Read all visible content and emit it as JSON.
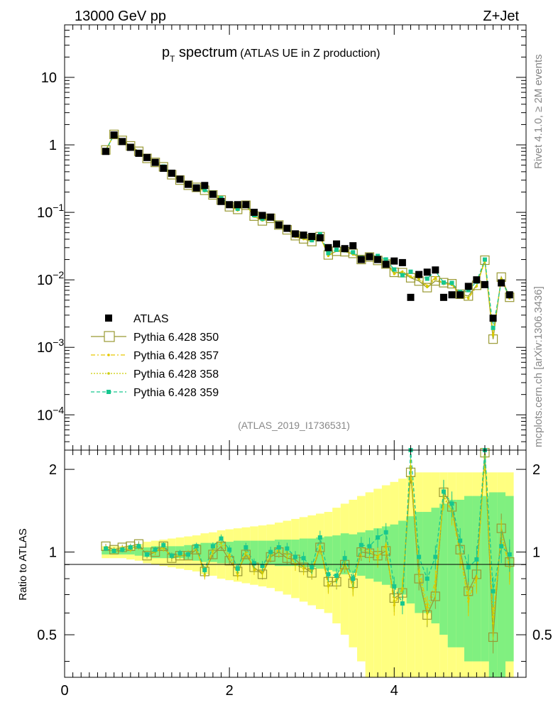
{
  "header": {
    "energy_label": "13000 GeV pp",
    "process_label": "Z+Jet",
    "title_main": "p",
    "title_sub": "T",
    "title_word": " spectrum",
    "title_paren": "(ATLAS UE in Z production)",
    "side_top": "Rivet 4.1.0, ≥ 2M events",
    "side_bottom": "mcplots.cern.ch [arXiv:1306.3436]",
    "analysis_id": "(ATLAS_2019_I1736531)"
  },
  "colors": {
    "data": "#000000",
    "p350": "#999933",
    "p357": "#e6c700",
    "p358": "#cccc00",
    "p359": "#17c78f",
    "band_inner": "#80f080",
    "band_outer": "#ffff80"
  },
  "chart_data": {
    "type": "scatter",
    "xlabel": "",
    "ylabel_ratio": "Ratio to ATLAS",
    "xlim": [
      0,
      5.6
    ],
    "ylim_main": [
      3e-05,
      60
    ],
    "ylim_ratio": [
      0.35,
      2.35
    ],
    "x_ticks": [
      "0",
      "2",
      "4"
    ],
    "y_ticks_main": [
      {
        "base": "10",
        "exp": "",
        "value": 10
      },
      {
        "base": "1",
        "exp": "",
        "value": 1
      },
      {
        "base": "10",
        "exp": "−1",
        "value": 0.1
      },
      {
        "base": "10",
        "exp": "−2",
        "value": 0.01
      },
      {
        "base": "10",
        "exp": "−3",
        "value": 0.001
      },
      {
        "base": "10",
        "exp": "−4",
        "value": 0.0001
      }
    ],
    "y_ticks_ratio": [
      {
        "label": "2",
        "value": 2
      },
      {
        "label": "1",
        "value": 1
      },
      {
        "label": "0.5",
        "value": 0.5
      }
    ],
    "legend": [
      {
        "key": "data",
        "label": "ATLAS"
      },
      {
        "key": "p350",
        "label": "Pythia 6.428 350"
      },
      {
        "key": "p357",
        "label": "Pythia 6.428 357"
      },
      {
        "key": "p358",
        "label": "Pythia 6.428 358"
      },
      {
        "key": "p359",
        "label": "Pythia 6.428 359"
      }
    ],
    "x": [
      0.5,
      0.6,
      0.7,
      0.8,
      0.9,
      1.0,
      1.1,
      1.2,
      1.3,
      1.4,
      1.5,
      1.6,
      1.7,
      1.8,
      1.9,
      2.0,
      2.1,
      2.2,
      2.3,
      2.4,
      2.5,
      2.6,
      2.7,
      2.8,
      2.9,
      3.0,
      3.1,
      3.2,
      3.3,
      3.4,
      3.5,
      3.6,
      3.7,
      3.8,
      3.9,
      4.0,
      4.1,
      4.2,
      4.3,
      4.4,
      4.5,
      4.6,
      4.7,
      4.8,
      4.9,
      5.0,
      5.1,
      5.2,
      5.3,
      5.4
    ],
    "atlas": [
      0.8,
      1.4,
      1.12,
      0.92,
      0.75,
      0.65,
      0.55,
      0.45,
      0.38,
      0.31,
      0.26,
      0.23,
      0.25,
      0.185,
      0.145,
      0.13,
      0.13,
      0.13,
      0.1,
      0.09,
      0.085,
      0.065,
      0.058,
      0.048,
      0.046,
      0.044,
      0.042,
      0.03,
      0.034,
      0.029,
      0.032,
      0.02,
      0.022,
      0.02,
      0.017,
      0.019,
      0.018,
      0.0055,
      0.012,
      0.013,
      0.014,
      0.0055,
      0.006,
      0.006,
      0.008,
      0.01,
      0.0085,
      0.0027,
      0.009,
      0.006
    ],
    "ratio350": [
      1.05,
      1.02,
      1.04,
      1.05,
      1.07,
      0.97,
      1.0,
      1.05,
      0.95,
      0.97,
      0.97,
      1.02,
      0.85,
      0.98,
      1.05,
      0.93,
      0.85,
      0.98,
      0.88,
      0.83,
      0.96,
      1.0,
      0.95,
      0.94,
      0.88,
      0.84,
      1.04,
      0.78,
      0.78,
      0.9,
      0.77,
      1.0,
      0.99,
      0.97,
      1.01,
      0.68,
      0.71,
      1.95,
      0.8,
      0.59,
      0.69,
      1.65,
      1.46,
      1.02,
      0.72,
      0.83,
      2.3,
      0.49,
      1.22,
      0.92
    ],
    "ratio357": [
      1.03,
      1.01,
      1.03,
      1.02,
      1.04,
      0.98,
      1.01,
      1.04,
      0.97,
      0.98,
      0.99,
      1.04,
      0.82,
      1.03,
      1.12,
      0.98,
      0.82,
      1.03,
      0.86,
      0.85,
      0.98,
      1.02,
      1.0,
      0.9,
      0.87,
      0.86,
      1.05,
      0.75,
      0.8,
      0.92,
      0.74,
      1.04,
      1.02,
      0.96,
      1.06,
      0.64,
      0.74,
      2.05,
      0.88,
      0.63,
      0.78,
      1.58,
      1.4,
      0.98,
      0.66,
      0.8,
      2.25,
      0.58,
      1.14,
      0.88
    ],
    "ratio358": [
      1.04,
      1.0,
      1.02,
      1.03,
      1.05,
      0.99,
      1.0,
      1.03,
      0.96,
      0.97,
      0.98,
      1.03,
      0.83,
      1.01,
      1.08,
      0.96,
      0.84,
      1.0,
      0.87,
      0.84,
      0.97,
      1.01,
      0.98,
      0.91,
      0.89,
      0.85,
      1.04,
      0.76,
      0.79,
      0.91,
      0.75,
      1.02,
      1.0,
      0.95,
      1.04,
      0.66,
      0.73,
      2.0,
      0.85,
      0.6,
      0.74,
      1.6,
      1.42,
      0.99,
      0.68,
      0.81,
      2.2,
      0.55,
      1.16,
      0.9
    ],
    "ratio359": [
      1.03,
      1.01,
      1.02,
      1.04,
      1.05,
      0.98,
      1.02,
      1.06,
      0.97,
      0.99,
      0.98,
      1.05,
      0.86,
      1.05,
      1.12,
      1.02,
      0.87,
      1.04,
      0.91,
      0.89,
      1.0,
      1.04,
      1.03,
      0.96,
      0.95,
      0.88,
      1.13,
      0.83,
      0.82,
      0.95,
      0.8,
      1.06,
      1.05,
      1.13,
      1.18,
      0.75,
      0.65,
      2.4,
      0.96,
      0.8,
      0.96,
      1.66,
      1.5,
      1.1,
      0.88,
      0.94,
      2.35,
      0.72,
      1.05,
      0.98
    ],
    "band_inner_half": [
      0.02,
      0.02,
      0.02,
      0.02,
      0.03,
      0.04,
      0.05,
      0.05,
      0.05,
      0.05,
      0.06,
      0.07,
      0.08,
      0.08,
      0.09,
      0.09,
      0.1,
      0.1,
      0.1,
      0.1,
      0.1,
      0.11,
      0.11,
      0.11,
      0.12,
      0.12,
      0.13,
      0.14,
      0.15,
      0.17,
      0.16,
      0.18,
      0.2,
      0.22,
      0.24,
      0.26,
      0.3,
      0.35,
      0.4,
      0.4,
      0.45,
      0.5,
      0.55,
      0.55,
      0.6,
      0.6,
      0.6,
      0.65,
      0.65,
      0.6
    ],
    "band_outer_half": [
      0.05,
      0.05,
      0.05,
      0.06,
      0.07,
      0.09,
      0.1,
      0.11,
      0.12,
      0.13,
      0.14,
      0.15,
      0.17,
      0.18,
      0.2,
      0.21,
      0.22,
      0.23,
      0.24,
      0.25,
      0.26,
      0.28,
      0.3,
      0.32,
      0.34,
      0.36,
      0.38,
      0.4,
      0.45,
      0.5,
      0.55,
      0.6,
      0.65,
      0.7,
      0.75,
      0.8,
      0.85,
      0.9,
      0.95,
      0.95,
      0.95,
      0.95,
      0.95,
      0.95,
      0.95,
      0.95,
      0.95,
      0.95,
      0.95,
      0.95
    ]
  }
}
